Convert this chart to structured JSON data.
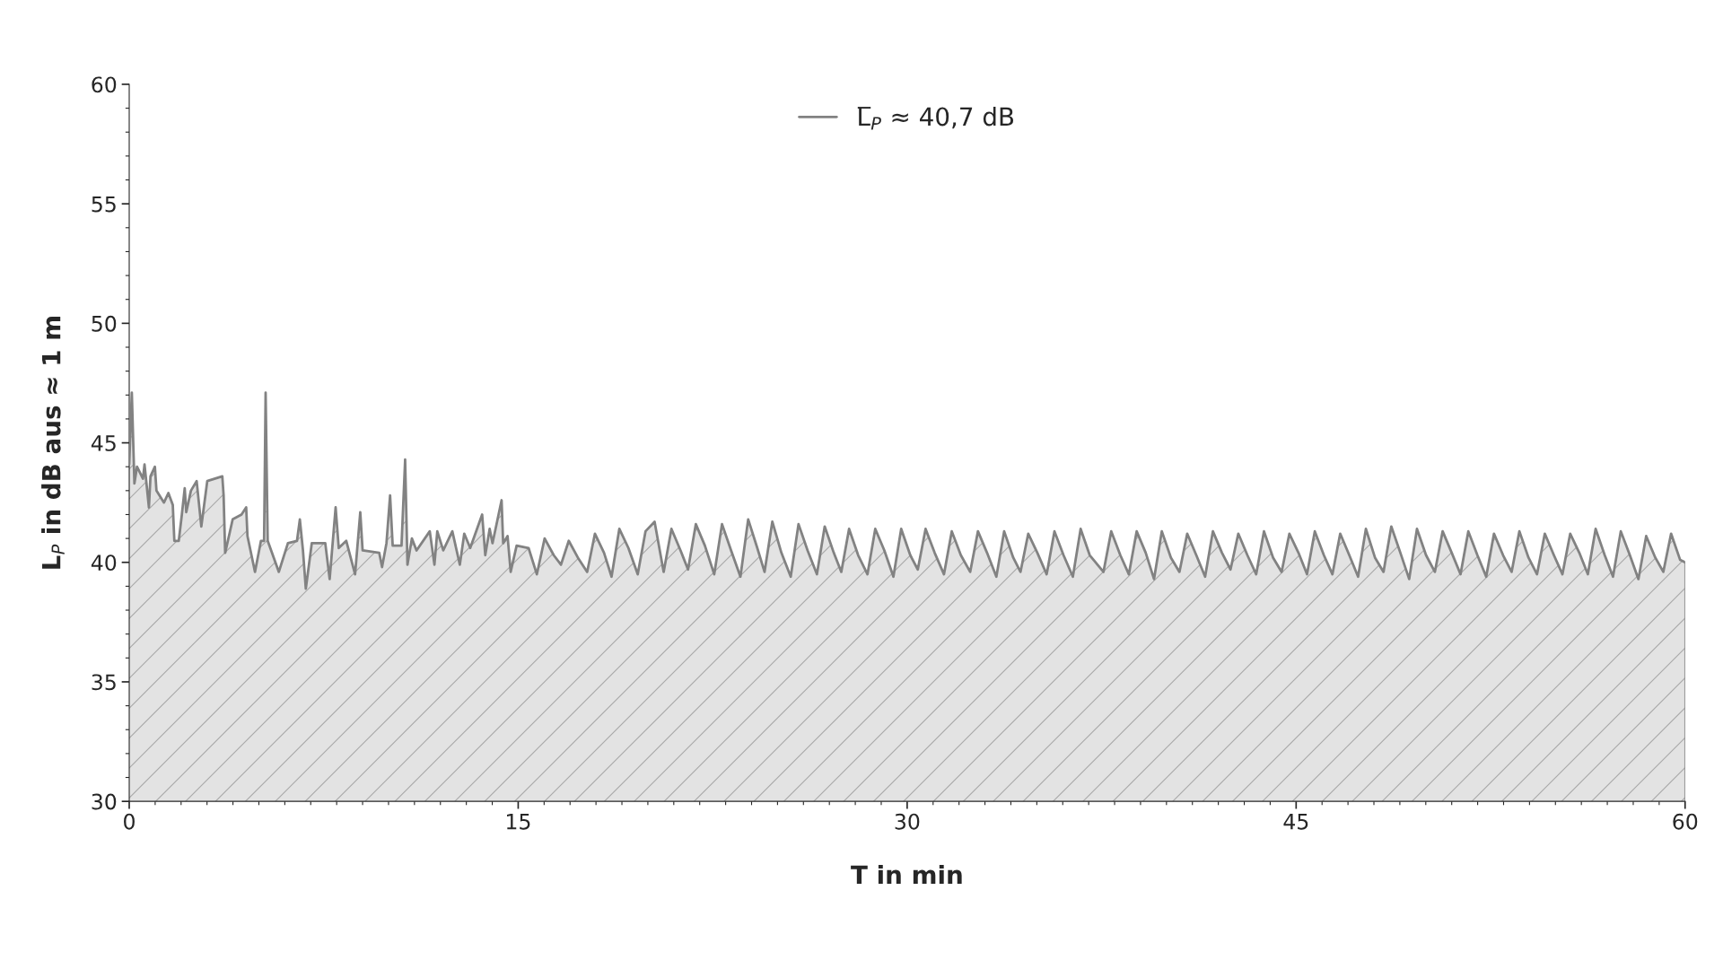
{
  "chart_data": {
    "type": "area",
    "xlabel": "T in min",
    "ylabel": "L$_{P}$ in dB aus ≈ 1 m",
    "xlim": [
      0,
      60
    ],
    "xticks": [
      0,
      15,
      30,
      45,
      60
    ],
    "ylim": [
      30,
      60
    ],
    "yticks": [
      30,
      35,
      40,
      45,
      50,
      55,
      60
    ],
    "grid": false,
    "legend": "top",
    "series": [
      {
        "name": "L̅$_{P}$ ≈ 40,7 dB",
        "color": "#828282",
        "x": [
          0,
          0.1,
          0.2,
          0.3,
          0.53,
          0.59,
          0.76,
          0.82,
          0.99,
          1.05,
          1.34,
          1.51,
          1.68,
          1.74,
          1.91,
          2.03,
          2.14,
          2.2,
          2.38,
          2.6,
          2.78,
          3.01,
          3.59,
          3.64,
          3.7,
          3.99,
          4.33,
          4.51,
          4.56,
          4.85,
          5.08,
          5.2,
          5.26,
          5.34,
          5.77,
          6.12,
          6.47,
          6.58,
          6.7,
          6.81,
          7.04,
          7.56,
          7.73,
          7.96,
          8.08,
          8.37,
          8.71,
          8.91,
          9.0,
          9.64,
          9.75,
          9.92,
          10.06,
          10.16,
          10.5,
          10.64,
          10.73,
          10.9,
          11.08,
          11.59,
          11.77,
          11.88,
          12.11,
          12.46,
          12.75,
          12.92,
          13.15,
          13.61,
          13.73,
          13.9,
          14.01,
          14.36,
          14.42,
          14.59,
          14.71,
          14.94,
          15.4,
          15.72,
          16.02,
          16.37,
          16.65,
          16.95,
          17.3,
          17.66,
          17.96,
          18.31,
          18.6,
          18.9,
          19.25,
          19.61,
          19.91,
          20.26,
          20.61,
          20.91,
          21.26,
          21.55,
          21.85,
          22.2,
          22.56,
          22.86,
          23.21,
          23.57,
          23.87,
          24.22,
          24.5,
          24.8,
          25.15,
          25.51,
          25.81,
          26.16,
          26.52,
          26.82,
          27.17,
          27.46,
          27.76,
          28.11,
          28.47,
          28.77,
          29.12,
          29.47,
          29.77,
          30.12,
          30.41,
          30.71,
          31.06,
          31.42,
          31.72,
          32.07,
          32.43,
          32.73,
          33.08,
          33.44,
          33.74,
          34.09,
          34.37,
          34.67,
          35.02,
          35.38,
          35.68,
          36.03,
          36.39,
          36.69,
          37.04,
          37.57,
          37.87,
          38.22,
          38.55,
          38.85,
          39.2,
          39.52,
          39.82,
          40.17,
          40.5,
          40.8,
          41.15,
          41.49,
          41.79,
          42.14,
          42.47,
          42.77,
          43.12,
          43.46,
          43.76,
          44.11,
          44.44,
          44.74,
          45.09,
          45.42,
          45.72,
          46.07,
          46.4,
          46.7,
          47.05,
          47.39,
          47.69,
          48.04,
          48.37,
          48.67,
          49.02,
          49.36,
          49.66,
          50.01,
          50.35,
          50.65,
          51.0,
          51.34,
          51.64,
          51.99,
          52.33,
          52.63,
          52.98,
          53.31,
          53.61,
          53.96,
          54.29,
          54.59,
          54.94,
          55.27,
          55.57,
          55.92,
          56.25,
          56.55,
          56.9,
          57.22,
          57.52,
          57.87,
          58.2,
          58.5,
          58.85,
          59.16,
          59.46,
          59.81,
          60
        ],
        "values": [
          44.1,
          47.1,
          43.3,
          44.0,
          43.5,
          44.1,
          42.3,
          43.6,
          44.0,
          43.0,
          42.5,
          42.9,
          42.4,
          40.9,
          40.9,
          42.0,
          43.1,
          42.1,
          43.0,
          43.4,
          41.5,
          43.4,
          43.6,
          42.8,
          40.4,
          41.8,
          42.0,
          42.3,
          41.1,
          39.6,
          40.9,
          40.9,
          47.1,
          40.9,
          39.6,
          40.8,
          40.9,
          41.8,
          40.5,
          38.9,
          40.8,
          40.8,
          39.3,
          42.3,
          40.6,
          40.9,
          39.5,
          42.1,
          40.5,
          40.4,
          39.8,
          40.8,
          42.8,
          40.7,
          40.7,
          44.3,
          39.9,
          41.0,
          40.5,
          41.3,
          39.9,
          41.3,
          40.5,
          41.3,
          39.9,
          41.2,
          40.6,
          42.0,
          40.3,
          41.4,
          40.8,
          42.6,
          40.8,
          41.1,
          39.6,
          40.7,
          40.6,
          39.5,
          41.0,
          40.3,
          39.9,
          40.9,
          40.2,
          39.6,
          41.2,
          40.4,
          39.4,
          41.4,
          40.6,
          39.5,
          41.3,
          41.7,
          39.6,
          41.4,
          40.5,
          39.7,
          41.6,
          40.7,
          39.5,
          41.6,
          40.5,
          39.4,
          41.8,
          40.6,
          39.6,
          41.7,
          40.4,
          39.4,
          41.6,
          40.5,
          39.5,
          41.5,
          40.4,
          39.6,
          41.4,
          40.3,
          39.5,
          41.4,
          40.5,
          39.4,
          41.4,
          40.3,
          39.7,
          41.4,
          40.4,
          39.5,
          41.3,
          40.3,
          39.6,
          41.3,
          40.4,
          39.4,
          41.3,
          40.2,
          39.6,
          41.2,
          40.4,
          39.5,
          41.3,
          40.3,
          39.4,
          41.4,
          40.3,
          39.6,
          41.3,
          40.3,
          39.5,
          41.3,
          40.4,
          39.3,
          41.3,
          40.2,
          39.6,
          41.2,
          40.3,
          39.4,
          41.3,
          40.4,
          39.7,
          41.2,
          40.3,
          39.5,
          41.3,
          40.2,
          39.6,
          41.2,
          40.4,
          39.5,
          41.3,
          40.3,
          39.5,
          41.2,
          40.3,
          39.4,
          41.4,
          40.2,
          39.6,
          41.5,
          40.4,
          39.3,
          41.4,
          40.3,
          39.6,
          41.3,
          40.4,
          39.5,
          41.3,
          40.3,
          39.4,
          41.2,
          40.3,
          39.6,
          41.3,
          40.2,
          39.5,
          41.2,
          40.3,
          39.5,
          41.2,
          40.4,
          39.5,
          41.4,
          40.3,
          39.4,
          41.3,
          40.3,
          39.3,
          41.1,
          40.2,
          39.6,
          41.2,
          40.1,
          40.0
        ]
      }
    ]
  }
}
